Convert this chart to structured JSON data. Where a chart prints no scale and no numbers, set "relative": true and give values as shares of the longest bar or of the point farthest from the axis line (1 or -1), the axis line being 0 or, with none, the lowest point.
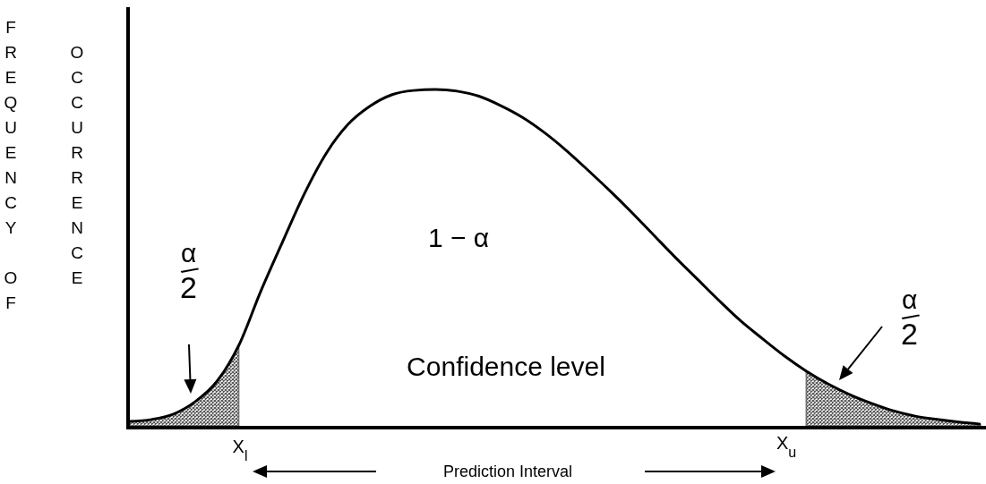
{
  "chart_data": {
    "type": "line",
    "relative": true,
    "ylabel": "FREQUENCY OF OCCURRENCE",
    "marker": "none",
    "line_style": "solid",
    "categories": [
      null,
      null,
      null,
      null,
      null,
      null,
      null,
      null,
      null,
      null,
      null,
      null,
      null,
      null,
      null,
      null,
      null,
      null,
      null,
      null,
      null,
      null,
      null,
      null,
      null,
      null,
      null,
      null,
      null,
      null,
      null,
      null,
      null,
      null,
      null,
      null,
      null,
      null,
      null,
      null
    ],
    "series": [
      {
        "color": "#000000",
        "values": [
          0.013,
          0.019,
          0.035,
          0.072,
          0.133,
          0.24,
          0.4,
          0.547,
          0.69,
          0.81,
          0.896,
          0.95,
          0.984,
          0.997,
          1,
          0.995,
          0.98,
          0.952,
          0.917,
          0.872,
          0.819,
          0.76,
          0.699,
          0.635,
          0.568,
          0.501,
          0.437,
          0.373,
          0.312,
          0.259,
          0.208,
          0.163,
          0.125,
          0.093,
          0.067,
          0.045,
          0.029,
          0.019,
          0.011,
          0.005
        ]
      },
      {
        "type": "area",
        "color": "#555555",
        "values": [
          0.013,
          0.019,
          0.035,
          0.072,
          0.133,
          0.24,
          null,
          null,
          null,
          null,
          null,
          null,
          null,
          null,
          null,
          null,
          null,
          null,
          null,
          null,
          null,
          null,
          null,
          null,
          null,
          null,
          null,
          null,
          null,
          null,
          null,
          null,
          null,
          null,
          null,
          null,
          null,
          null,
          null,
          null
        ]
      },
      {
        "type": "area",
        "color": "#555555",
        "values": [
          null,
          null,
          null,
          null,
          null,
          null,
          null,
          null,
          null,
          null,
          null,
          null,
          null,
          null,
          null,
          null,
          null,
          null,
          null,
          null,
          null,
          null,
          null,
          null,
          null,
          null,
          null,
          null,
          null,
          null,
          null,
          0.163,
          0.125,
          0.093,
          0.067,
          0.045,
          0.029,
          0.019,
          0.011,
          0.005
        ]
      }
    ],
    "annotations": [
      "α/2",
      "α/2",
      "1 − α",
      "Confidence level",
      "X$_{l}$",
      "X$_{u}$",
      "Prediction Interval"
    ]
  }
}
